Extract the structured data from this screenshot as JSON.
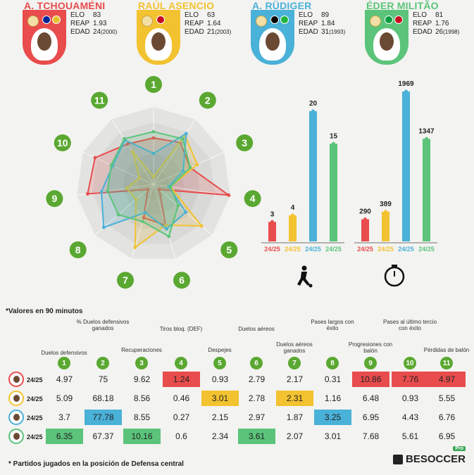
{
  "colors": {
    "tchouameni": "#e84c4c",
    "asencio": "#f2c230",
    "rudiger": "#4ab1d8",
    "militao": "#5bc47a",
    "green": "#5aa831"
  },
  "players": [
    {
      "name": "A. TCHOUAMÉNI",
      "elo_label": "ELO",
      "elo": "83",
      "reap_label": "REAP",
      "reap": "1.93",
      "edad_label": "EDAD",
      "edad": "24",
      "year": "(2000)",
      "color": "#e84c4c",
      "flags": [
        "#002395",
        "#e6c12f"
      ]
    },
    {
      "name": "RAÚL ASENCIO",
      "elo_label": "ELO",
      "elo": "63",
      "reap_label": "REAP",
      "reap": "1.64",
      "edad_label": "EDAD",
      "edad": "21",
      "year": "(2003)",
      "color": "#f2c230",
      "flags": [
        "#c60b1e"
      ]
    },
    {
      "name": "A. RÜDIGER",
      "elo_label": "ELO",
      "elo": "89",
      "reap_label": "REAP",
      "reap": "1.84",
      "edad_label": "EDAD",
      "edad": "31",
      "year": "(1993)",
      "color": "#4ab1d8",
      "flags": [
        "#000000",
        "#1eb53a"
      ]
    },
    {
      "name": "ÉDER MILITÃO",
      "elo_label": "ELO",
      "elo": "81",
      "reap_label": "REAP",
      "reap": "1.76",
      "edad_label": "EDAD",
      "edad": "26",
      "year": "(1998)",
      "color": "#5bc47a",
      "flags": [
        "#009c3b",
        "#c60b1e"
      ]
    }
  ],
  "chart_data": [
    {
      "type": "radar",
      "axes": [
        "1",
        "2",
        "3",
        "4",
        "5",
        "6",
        "7",
        "8",
        "9",
        "10",
        "11"
      ],
      "series": [
        {
          "values": [
            0.6,
            0.64,
            0.52,
            0.98,
            0.1,
            0.55,
            0.45,
            0.1,
            0.86,
            0.83,
            0.62
          ]
        },
        {
          "values": [
            0.1,
            0.75,
            0.62,
            0.22,
            0.82,
            0.55,
            0.85,
            0.3,
            0.35,
            0.2,
            0.5
          ]
        },
        {
          "values": [
            0.4,
            0.78,
            0.42,
            0.2,
            0.55,
            0.6,
            0.38,
            0.85,
            0.68,
            0.58,
            0.68
          ]
        },
        {
          "values": [
            0.68,
            0.7,
            0.52,
            0.22,
            0.42,
            0.7,
            0.5,
            0.6,
            0.6,
            0.6,
            0.7
          ]
        }
      ]
    },
    {
      "type": "bar",
      "categories": [
        "24/25",
        "24/25",
        "24/25",
        "24/25"
      ],
      "values": [
        3,
        4,
        20,
        15
      ],
      "icon": "football-player-icon"
    },
    {
      "type": "bar",
      "categories": [
        "24/25",
        "24/25",
        "24/25",
        "24/25"
      ],
      "values": [
        290,
        389,
        1969,
        1347
      ],
      "icon": "stopwatch-icon"
    },
    {
      "type": "table",
      "note": "*Valores en 90 minutos",
      "columns": [
        {
          "num": "1",
          "label": "Duelos defensivos"
        },
        {
          "num": "2",
          "label": "% Duelos defensivos ganados"
        },
        {
          "num": "3",
          "label": "Recuperaciones"
        },
        {
          "num": "4",
          "label": "Tiros bloq. (DEF)"
        },
        {
          "num": "5",
          "label": "Despejes"
        },
        {
          "num": "6",
          "label": "Duelos aéreos"
        },
        {
          "num": "7",
          "label": "Duelos aéreos ganados"
        },
        {
          "num": "8",
          "label": "Pases largos con éxito"
        },
        {
          "num": "9",
          "label": "Progresiones con balón"
        },
        {
          "num": "10",
          "label": "Pases al último tercio con éxito"
        },
        {
          "num": "11",
          "label": "Pérdidas de balón"
        }
      ],
      "rows": [
        {
          "season": "24/25",
          "values": [
            "4.97",
            "75",
            "9.62",
            "1.24",
            "0.93",
            "2.79",
            "2.17",
            "0.31",
            "10.86",
            "7.76",
            "4.97"
          ],
          "highlight": [
            3,
            8,
            9,
            10
          ]
        },
        {
          "season": "24/25",
          "values": [
            "5.09",
            "68.18",
            "8.56",
            "0.46",
            "3.01",
            "2.78",
            "2.31",
            "1.16",
            "6.48",
            "0.93",
            "5.55"
          ],
          "highlight": [
            4,
            6
          ]
        },
        {
          "season": "24/25",
          "values": [
            "3.7",
            "77.78",
            "8.55",
            "0.27",
            "2.15",
            "2.97",
            "1.87",
            "3.25",
            "6.95",
            "4.43",
            "6.76"
          ],
          "highlight": [
            1,
            7
          ]
        },
        {
          "season": "24/25",
          "values": [
            "6.35",
            "67.37",
            "10.16",
            "0.6",
            "2.34",
            "3.61",
            "2.07",
            "3.01",
            "7.68",
            "5.61",
            "6.95"
          ],
          "highlight": [
            0,
            2,
            5
          ]
        }
      ]
    }
  ],
  "footnote": "* Partidos jugados en la posición de Defensa central",
  "brand": {
    "name": "BESOCCER",
    "badge": "Pro"
  }
}
